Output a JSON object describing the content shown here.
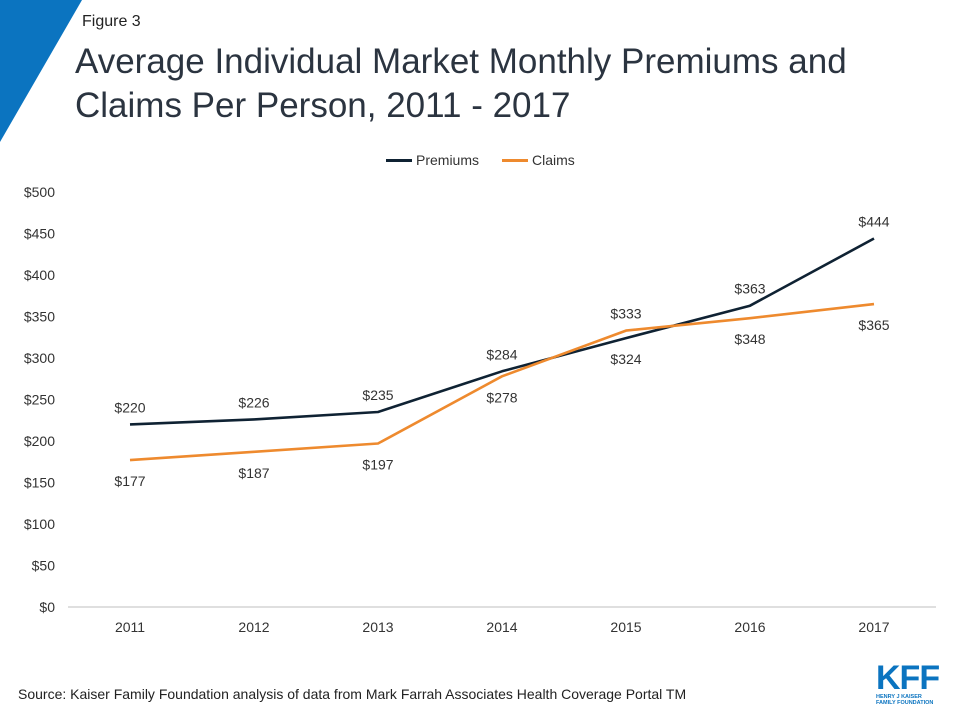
{
  "figure_label": "Figure 3",
  "title": "Average Individual Market Monthly Premiums and Claims Per Person, 2011 - 2017",
  "source": "Source: Kaiser Family Foundation analysis of data from Mark Farrah Associates Health Coverage Portal TM",
  "logo": {
    "mark": "KFF",
    "line1": "HENRY J KAISER",
    "line2": "FAMILY FOUNDATION"
  },
  "colors": {
    "premiums": "#0f2233",
    "claims": "#ee8a2e",
    "accent": "#0b74c0",
    "axis": "#bfbfbf"
  },
  "chart_data": {
    "type": "line",
    "categories": [
      "2011",
      "2012",
      "2013",
      "2014",
      "2015",
      "2016",
      "2017"
    ],
    "series": [
      {
        "name": "Premiums",
        "values": [
          220,
          226,
          235,
          284,
          324,
          363,
          444
        ]
      },
      {
        "name": "Claims",
        "values": [
          177,
          187,
          197,
          278,
          333,
          348,
          365
        ]
      }
    ],
    "y_ticks": [
      "$0",
      "$50",
      "$100",
      "$150",
      "$200",
      "$250",
      "$300",
      "$350",
      "$400",
      "$450",
      "$500"
    ],
    "ylim": [
      0,
      500
    ],
    "legend": "top",
    "grid": false
  }
}
